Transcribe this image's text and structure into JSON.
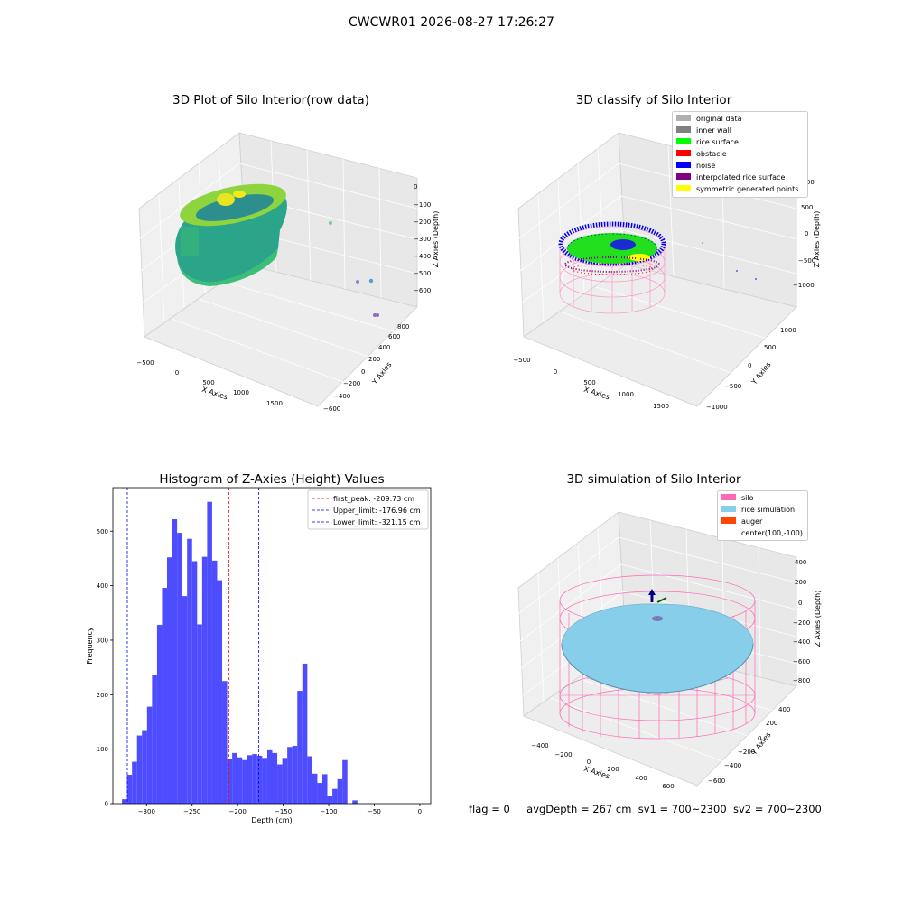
{
  "suptitle": "CWCWR01 2026-08-27 17:26:27",
  "footer": {
    "flag": "flag = 0",
    "avg_depth": "avgDepth = 267 cm",
    "sv1": "sv1 = 700~2300",
    "sv2": "sv2 = 700~2300"
  },
  "plot_raw": {
    "title": "3D Plot of Silo Interior(row data)",
    "xlabel": "X Axies",
    "ylabel": "Y Axies",
    "zlabel": "Z Axies (Depth)",
    "x_ticks": [
      "−500",
      "0",
      "500",
      "1000",
      "1500"
    ],
    "y_ticks": [
      "−600",
      "−400",
      "−200",
      "0",
      "200",
      "400",
      "600",
      "800"
    ],
    "z_ticks": [
      "0",
      "−100",
      "−200",
      "−300",
      "−400",
      "−500",
      "−600"
    ]
  },
  "plot_classify": {
    "title": "3D classify of Silo Interior",
    "xlabel": "X Axies",
    "ylabel": "Y Axies",
    "zlabel": "Z Axies (Depth)",
    "x_ticks": [
      "−500",
      "0",
      "500",
      "1000",
      "1500"
    ],
    "y_ticks": [
      "−1000",
      "−500",
      "0",
      "500",
      "1000"
    ],
    "z_ticks": [
      "1000",
      "500",
      "0",
      "−500",
      "−1000"
    ],
    "legend": [
      {
        "label": "original data",
        "color": "#b0b0b0"
      },
      {
        "label": "inner wall",
        "color": "#808080"
      },
      {
        "label": "rice surface",
        "color": "#00ff00"
      },
      {
        "label": "obstacle",
        "color": "#ff0000"
      },
      {
        "label": "noise",
        "color": "#0000ff"
      },
      {
        "label": "interpolated rice surface",
        "color": "#800080"
      },
      {
        "label": "symmetric generated points",
        "color": "#ffff00"
      }
    ]
  },
  "plot_sim": {
    "title": "3D simulation of Silo Interior",
    "xlabel": "X Axies",
    "ylabel": "Y Axies",
    "zlabel": "Z Axies (Depth)",
    "x_ticks": [
      "−400",
      "−200",
      "0",
      "200",
      "400",
      "600"
    ],
    "y_ticks": [
      "−600",
      "−400",
      "−200",
      "0",
      "200",
      "400"
    ],
    "z_ticks": [
      "400",
      "200",
      "0",
      "−200",
      "−400",
      "−600",
      "−800"
    ],
    "legend": [
      {
        "label": "silo",
        "color": "#ff69b4"
      },
      {
        "label": "rice simulation",
        "color": "#87ceeb"
      },
      {
        "label": "auger",
        "color": "#ff4500"
      },
      {
        "label": "center(100,-100)",
        "color": "#ffffff"
      }
    ]
  },
  "chart_data": [
    {
      "type": "bar",
      "title": "Histogram of Z-Axies (Height) Values",
      "xlabel": "Depth (cm)",
      "ylabel": "Frequency",
      "xlim": [
        -337,
        12
      ],
      "ylim": [
        0,
        580
      ],
      "x_ticks": [
        -300,
        -250,
        -200,
        -150,
        -100,
        -50,
        0
      ],
      "y_ticks": [
        0,
        100,
        200,
        300,
        400,
        500
      ],
      "bar_color": "#4d4dff",
      "bin_start": -327,
      "bin_width": 5.5,
      "values": [
        8,
        53,
        77,
        125,
        135,
        178,
        237,
        328,
        396,
        452,
        522,
        497,
        381,
        486,
        445,
        329,
        453,
        554,
        446,
        410,
        225,
        82,
        93,
        85,
        80,
        89,
        91,
        88,
        84,
        98,
        93,
        72,
        84,
        104,
        106,
        207,
        257,
        87,
        55,
        38,
        54,
        14,
        27,
        45,
        80,
        0,
        6
      ],
      "vlines": [
        {
          "label": "first_peak: -209.73 cm",
          "x": -209.73,
          "color": "#ff0000"
        },
        {
          "label": "Upper_limit: -176.96 cm",
          "x": -176.96,
          "color": "#0000ff"
        },
        {
          "label": "Lower_limit: -321.15 cm",
          "x": -321.15,
          "color": "#0000ff"
        }
      ]
    }
  ]
}
